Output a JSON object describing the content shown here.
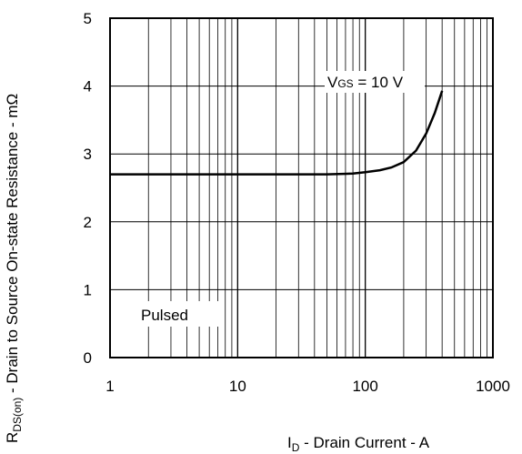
{
  "chart_data": {
    "type": "line",
    "xscale": "log",
    "xlim": [
      1,
      1000
    ],
    "ylim": [
      0,
      5
    ],
    "x_tick_labels": [
      "1",
      "10",
      "100",
      "1000"
    ],
    "y_tick_labels": [
      "0",
      "1",
      "2",
      "3",
      "4",
      "5"
    ],
    "xlabel": {
      "main": "I",
      "sub": "D",
      "rest": " - Drain Current - A"
    },
    "ylabel": {
      "main": "R",
      "sub": "DS(on)",
      "rest": " - Drain to Source On-state Resistance - mΩ"
    },
    "grid": true,
    "series": [
      {
        "x": [
          1,
          2,
          5,
          10,
          20,
          50,
          80,
          100,
          130,
          160,
          200,
          250,
          300,
          350,
          400
        ],
        "y": [
          2.7,
          2.7,
          2.7,
          2.7,
          2.7,
          2.7,
          2.71,
          2.73,
          2.76,
          2.8,
          2.88,
          3.05,
          3.3,
          3.6,
          3.93
        ]
      }
    ],
    "annotations": [
      {
        "main": "V",
        "sub": "GS",
        "rest": " = 10 V"
      },
      {
        "text": "Pulsed"
      }
    ],
    "colors": {
      "line": "#000000",
      "grid": "#000000",
      "background": "#ffffff"
    }
  }
}
